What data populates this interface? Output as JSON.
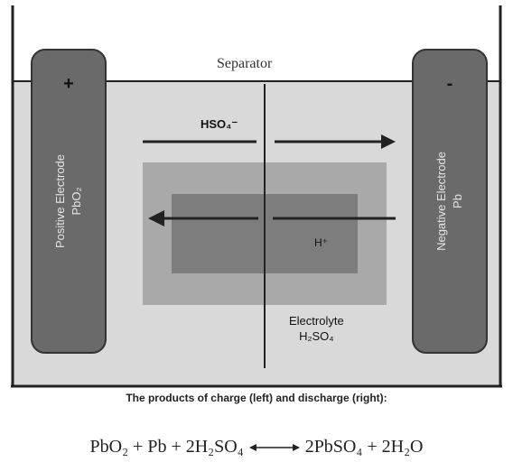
{
  "separator_label": "Separator",
  "positive_electrode": {
    "sign": "+",
    "name": "Positive Electrode",
    "formula": "PbO₂"
  },
  "negative_electrode": {
    "sign": "-",
    "name": "Negative Electrode",
    "formula": "Pb"
  },
  "ion_top": "HSO₄⁻",
  "ion_bottom": "H⁺",
  "electrolyte": {
    "name": "Electrolyte",
    "formula": "H₂SO₄"
  },
  "caption": "The products of charge (left) and discharge (right):",
  "equation": {
    "left": "PbO₂ + Pb + 2H₂SO₄",
    "right": "2PbSO₄ + 2H₂O"
  },
  "colors": {
    "electrolyte_bg": "#d9d9d9",
    "middle_box": "#a9a9a9",
    "inner_box": "#7d7d7d",
    "electrode": "#6a6a6a"
  }
}
